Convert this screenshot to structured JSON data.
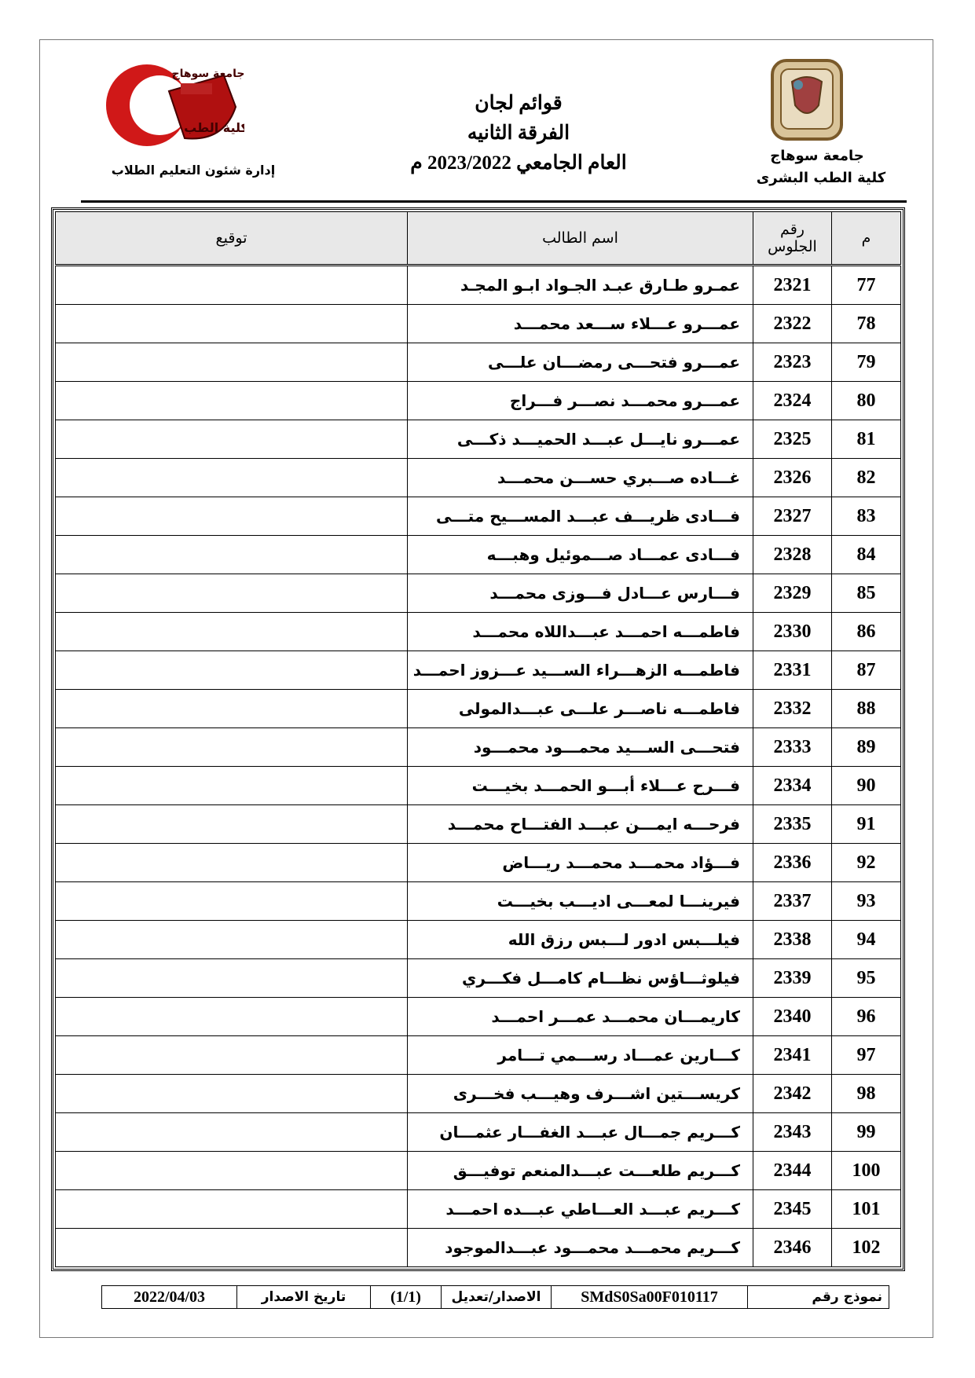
{
  "header": {
    "university_right": "جامعة سوهاج",
    "faculty_right": "كلية الطب البشرى",
    "department_left": "إدارة شئون التعليم الطلاب",
    "logo_left_top": "جامعة سوهاج",
    "logo_left_bottom": "كلية الطب",
    "title": "قوائم لجان",
    "subtitle": "الفرقة الثانيه",
    "year": "العام الجامعي 2023/2022 م"
  },
  "table": {
    "columns": [
      "م",
      "رقم الجلوس",
      "اسم الطالب",
      "توقيع"
    ],
    "rows": [
      [
        77,
        2321,
        "عمـرو طـارق عبـد الجـواد ابـو المجـد"
      ],
      [
        78,
        2322,
        "عمـــرو عـــلاء ســـعد محمـــد"
      ],
      [
        79,
        2323,
        "عمـــرو فتحـــى رمضـــان علـــى"
      ],
      [
        80,
        2324,
        "عمـــرو محمـــد نصـــر فـــراج"
      ],
      [
        81,
        2325,
        "عمـــرو نايـــل عبـــد الحميـــد ذكـــى"
      ],
      [
        82,
        2326,
        "غـــاده صـــبري حســـن محمـــد"
      ],
      [
        83,
        2327,
        "فـــادى ظريـــف عبـــد المســـيح متـــى"
      ],
      [
        84,
        2328,
        "فـــادى عمـــاد صـــموئيل وهبـــه"
      ],
      [
        85,
        2329,
        "فـــارس عـــادل فـــوزى محمـــد"
      ],
      [
        86,
        2330,
        "فاطمـــه احمـــد عبـــداللاه محمـــد"
      ],
      [
        87,
        2331,
        "فاطمـــه الزهـــراء الســـيد عـــزوز احمـــد"
      ],
      [
        88,
        2332,
        "فاطمـــه ناصـــر علـــى عبـــدالمولى"
      ],
      [
        89,
        2333,
        "فتحـــى الســـيد محمـــود محمـــود"
      ],
      [
        90,
        2334,
        "فـــرح عـــلاء أبـــو الحمـــد بخيـــت"
      ],
      [
        91,
        2335,
        "فرحـــه ايمـــن عبـــد الفتـــاح محمـــد"
      ],
      [
        92,
        2336,
        "فـــؤاد محمـــد محمـــد ريـــاض"
      ],
      [
        93,
        2337,
        "فيرينـــا لمعـــى اديـــب بخيـــت"
      ],
      [
        94,
        2338,
        "فيلـــبس ادور لـــبس رزق الله"
      ],
      [
        95,
        2339,
        "فيلوثـــاؤس نظـــام كامـــل فكـــري"
      ],
      [
        96,
        2340,
        "كاريمـــان محمـــد عمـــر احمـــد"
      ],
      [
        97,
        2341,
        "كـــارين عمـــاد رســـمي تـــامر"
      ],
      [
        98,
        2342,
        "كريســـتين اشـــرف وهيـــب فخـــرى"
      ],
      [
        99,
        2343,
        "كـــريم جمـــال عبـــد الغفـــار عثمـــان"
      ],
      [
        100,
        2344,
        "كـــريم طلعـــت عبـــدالمنعم توفيـــق"
      ],
      [
        101,
        2345,
        "كـــريم عبـــد العـــاطي عبـــده احمـــد"
      ],
      [
        102,
        2346,
        "كـــريم محمـــد محمـــود عبـــدالموجود"
      ]
    ]
  },
  "footer": {
    "form_label": "نموذج رقم",
    "form_code": "SMdS0Sa00F010117",
    "edition_label": "الاصدار/تعديل",
    "edition": "(1/1)",
    "date_label": "تاريخ الاصدار",
    "date": "2022/04/03"
  }
}
